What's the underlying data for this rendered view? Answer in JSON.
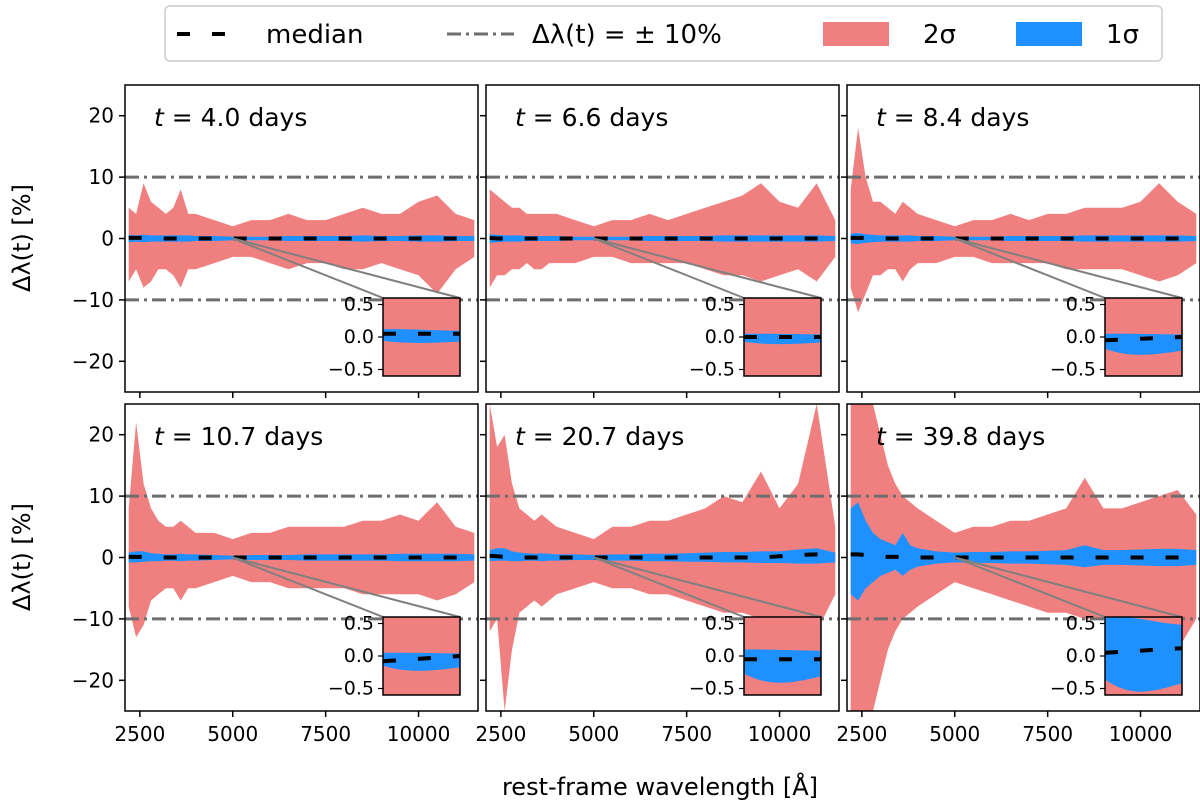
{
  "colors": {
    "two_sigma": "#F08080",
    "one_sigma": "#1E90FF",
    "median": "#000000",
    "threshold": "#6e6e6e",
    "connector": "#808080"
  },
  "legend": {
    "median": "median",
    "threshold": "Δλ(t) = ± 10%",
    "two_sigma": "2σ",
    "one_sigma": "1σ"
  },
  "chart_data": {
    "type": "area",
    "xlabel": "rest-frame wavelength [Å]",
    "ylabel": "Δλ(t) [%]",
    "xlim": [
      2100,
      11600
    ],
    "ylim": [
      -25,
      25
    ],
    "xticks": [
      2500,
      5000,
      7500,
      10000
    ],
    "xtick_labels": [
      "2500",
      "5000",
      "7500",
      "10000"
    ],
    "yticks": [
      -20,
      -10,
      0,
      10,
      20
    ],
    "ytick_labels": [
      "−20",
      "−10",
      "0",
      "10",
      "20"
    ],
    "threshold_values": [
      -10,
      10
    ],
    "inset": {
      "ylim": [
        -0.6,
        0.6
      ],
      "yticks": [
        -0.5,
        0.0,
        0.5
      ],
      "ytick_labels": [
        "−0.5",
        "0.0",
        "0.5"
      ],
      "zoom_x": 5000,
      "zoom_y": 0
    },
    "x": [
      2200,
      2400,
      2600,
      2800,
      3000,
      3200,
      3400,
      3600,
      3800,
      4000,
      4500,
      5000,
      5500,
      6000,
      6500,
      7000,
      7500,
      8000,
      8500,
      9000,
      9500,
      10000,
      10500,
      11000,
      11500
    ],
    "panels": [
      {
        "label_prefix": "t = ",
        "label_value": "4.0 days",
        "two_sigma_upper": [
          5,
          4,
          9,
          6,
          5,
          4,
          5,
          8,
          4,
          4,
          3,
          2,
          3,
          3,
          4,
          3,
          3,
          4,
          5,
          4,
          4,
          6,
          7,
          4,
          3
        ],
        "two_sigma_lower": [
          -7,
          -5,
          -8,
          -7,
          -5,
          -5,
          -6,
          -8,
          -5,
          -5,
          -4,
          -3,
          -3,
          -4,
          -5,
          -4,
          -4,
          -5,
          -5,
          -4,
          -5,
          -6,
          -9,
          -5,
          -3
        ],
        "one_sigma_upper": [
          0.6,
          0.5,
          0.6,
          0.5,
          0.5,
          0.5,
          0.5,
          0.5,
          0.5,
          0.4,
          0.4,
          0.3,
          0.3,
          0.3,
          0.4,
          0.4,
          0.4,
          0.4,
          0.5,
          0.4,
          0.4,
          0.5,
          0.5,
          0.4,
          0.4
        ],
        "one_sigma_lower": [
          -0.6,
          -0.5,
          -0.6,
          -0.5,
          -0.5,
          -0.5,
          -0.5,
          -0.5,
          -0.5,
          -0.4,
          -0.4,
          -0.3,
          -0.3,
          -0.3,
          -0.4,
          -0.4,
          -0.4,
          -0.4,
          -0.5,
          -0.4,
          -0.4,
          -0.5,
          -0.5,
          -0.4,
          -0.4
        ],
        "median": [
          0.1,
          0.1,
          0.1,
          0.1,
          0.1,
          0,
          0,
          0,
          0,
          0,
          0,
          0,
          0,
          0,
          0,
          0,
          0,
          0,
          0,
          0,
          0,
          0,
          0,
          0,
          0
        ],
        "inset_one_sigma": [
          0.12,
          -0.1
        ],
        "inset_median": [
          0.05,
          0.05
        ]
      },
      {
        "label_prefix": "t = ",
        "label_value": "6.6 days",
        "two_sigma_upper": [
          8,
          7,
          6,
          5,
          5,
          4,
          4,
          4,
          4,
          4,
          3,
          2,
          3,
          3,
          4,
          3,
          4,
          5,
          6,
          7,
          9,
          6,
          5,
          9,
          3
        ],
        "two_sigma_lower": [
          -8,
          -6,
          -6,
          -5,
          -5,
          -4,
          -5,
          -5,
          -4,
          -4,
          -4,
          -3,
          -3,
          -4,
          -4,
          -4,
          -4,
          -5,
          -6,
          -6,
          -7,
          -6,
          -5,
          -7,
          -3
        ],
        "one_sigma_upper": [
          0.7,
          0.6,
          0.5,
          0.5,
          0.5,
          0.4,
          0.4,
          0.4,
          0.4,
          0.4,
          0.3,
          0.3,
          0.3,
          0.3,
          0.4,
          0.4,
          0.4,
          0.4,
          0.5,
          0.5,
          0.5,
          0.5,
          0.5,
          0.5,
          0.4
        ],
        "one_sigma_lower": [
          -0.7,
          -0.6,
          -0.5,
          -0.5,
          -0.5,
          -0.4,
          -0.4,
          -0.4,
          -0.4,
          -0.4,
          -0.3,
          -0.3,
          -0.3,
          -0.3,
          -0.4,
          -0.4,
          -0.4,
          -0.4,
          -0.5,
          -0.5,
          -0.5,
          -0.5,
          -0.5,
          -0.5,
          -0.4
        ],
        "median": [
          0.1,
          0,
          0,
          0,
          0,
          0,
          0,
          0,
          0,
          0,
          0,
          0,
          0,
          0,
          0,
          0,
          0,
          0,
          0,
          0,
          0,
          0,
          0,
          0,
          0
        ],
        "inset_one_sigma": [
          0.05,
          -0.12
        ],
        "inset_median": [
          0.0,
          0.0
        ]
      },
      {
        "label_prefix": "t = ",
        "label_value": "8.4 days",
        "two_sigma_upper": [
          8,
          18,
          10,
          6,
          6,
          5,
          4,
          6,
          5,
          4,
          3,
          2,
          3,
          3,
          4,
          3,
          4,
          4,
          5,
          5,
          5,
          6,
          9,
          6,
          4
        ],
        "two_sigma_lower": [
          -8,
          -12,
          -9,
          -6,
          -6,
          -5,
          -5,
          -7,
          -5,
          -4,
          -4,
          -3,
          -3,
          -4,
          -4,
          -4,
          -4,
          -5,
          -5,
          -5,
          -5,
          -6,
          -7,
          -6,
          -4
        ],
        "one_sigma_upper": [
          0.8,
          0.9,
          0.7,
          0.6,
          0.5,
          0.5,
          0.5,
          0.5,
          0.5,
          0.4,
          0.4,
          0.3,
          0.3,
          0.3,
          0.4,
          0.4,
          0.4,
          0.4,
          0.5,
          0.5,
          0.5,
          0.5,
          0.5,
          0.5,
          0.4
        ],
        "one_sigma_lower": [
          -0.8,
          -0.9,
          -0.7,
          -0.6,
          -0.5,
          -0.5,
          -0.5,
          -0.5,
          -0.5,
          -0.4,
          -0.4,
          -0.3,
          -0.3,
          -0.3,
          -0.4,
          -0.4,
          -0.4,
          -0.4,
          -0.5,
          -0.5,
          -0.5,
          -0.5,
          -0.5,
          -0.5,
          -0.4
        ],
        "median": [
          0.1,
          0.1,
          0.1,
          0,
          0,
          0,
          0,
          0,
          0,
          0,
          0,
          0,
          0,
          0,
          0,
          0,
          0,
          0,
          0,
          0,
          0,
          0,
          0,
          0,
          0
        ],
        "inset_one_sigma": [
          0.05,
          -0.3
        ],
        "inset_median": [
          -0.05,
          0.0
        ]
      },
      {
        "label_prefix": "t = ",
        "label_value": "10.7 days",
        "two_sigma_upper": [
          8,
          22,
          12,
          8,
          6,
          5,
          5,
          6,
          5,
          4,
          4,
          3,
          4,
          4,
          5,
          5,
          5,
          5,
          6,
          6,
          7,
          6,
          9,
          5,
          4
        ],
        "two_sigma_lower": [
          -8,
          -13,
          -11,
          -7,
          -6,
          -5,
          -5,
          -7,
          -5,
          -5,
          -4,
          -3,
          -4,
          -4,
          -5,
          -5,
          -5,
          -5,
          -6,
          -6,
          -6,
          -6,
          -7,
          -6,
          -4
        ],
        "one_sigma_upper": [
          0.8,
          1.0,
          1.0,
          0.7,
          0.6,
          0.5,
          0.5,
          0.6,
          0.5,
          0.5,
          0.4,
          0.3,
          0.4,
          0.4,
          0.4,
          0.5,
          0.5,
          0.5,
          0.5,
          0.5,
          0.6,
          0.6,
          0.6,
          0.6,
          0.5
        ],
        "one_sigma_lower": [
          -0.8,
          -0.8,
          -0.7,
          -0.6,
          -0.6,
          -0.5,
          -0.5,
          -0.6,
          -0.5,
          -0.5,
          -0.4,
          -0.3,
          -0.4,
          -0.4,
          -0.4,
          -0.5,
          -0.5,
          -0.5,
          -0.5,
          -0.5,
          -0.6,
          -0.6,
          -0.6,
          -0.6,
          -0.5
        ],
        "median": [
          0.1,
          0.1,
          0.1,
          0,
          0,
          0,
          0,
          0,
          0,
          0,
          0,
          0,
          0,
          0,
          0,
          0,
          0,
          0,
          0,
          0,
          0,
          0,
          0,
          0,
          0
        ],
        "inset_one_sigma": [
          0.05,
          -0.25
        ],
        "inset_median": [
          -0.08,
          0.0
        ]
      },
      {
        "label_prefix": "t = ",
        "label_value": "20.7 days",
        "two_sigma_upper": [
          25,
          18,
          20,
          12,
          8,
          7,
          6,
          7,
          6,
          5,
          4,
          3,
          5,
          5,
          6,
          6,
          7,
          8,
          10,
          9,
          14,
          8,
          12,
          25,
          5
        ],
        "two_sigma_lower": [
          -12,
          -10,
          -25,
          -15,
          -9,
          -8,
          -7,
          -8,
          -7,
          -6,
          -5,
          -4,
          -5,
          -5,
          -6,
          -6,
          -7,
          -8,
          -9,
          -9,
          -10,
          -10,
          -10,
          -12,
          -6
        ],
        "one_sigma_upper": [
          1.2,
          1.5,
          1.5,
          1.0,
          0.8,
          0.7,
          0.6,
          0.7,
          0.6,
          0.5,
          0.5,
          0.4,
          0.5,
          0.5,
          0.6,
          0.6,
          0.7,
          0.8,
          0.9,
          0.9,
          1.0,
          1.0,
          1.3,
          1.5,
          0.8
        ],
        "one_sigma_lower": [
          -0.6,
          -0.5,
          -0.5,
          -0.6,
          -0.6,
          -0.5,
          -0.5,
          -0.6,
          -0.5,
          -0.5,
          -0.4,
          -0.4,
          -0.5,
          -0.5,
          -0.6,
          -0.6,
          -0.7,
          -0.7,
          -0.8,
          -0.8,
          -0.9,
          -0.9,
          -1.0,
          -1.0,
          -0.8
        ],
        "median": [
          0.3,
          0.2,
          0.1,
          0.1,
          0,
          0,
          0,
          0,
          0,
          0,
          0,
          0,
          0,
          0,
          0,
          0,
          0,
          0,
          0,
          0,
          0,
          0.2,
          0.4,
          0.5,
          0.3
        ],
        "inset_one_sigma": [
          0.1,
          -0.45
        ],
        "inset_median": [
          -0.05,
          -0.05
        ]
      },
      {
        "label_prefix": "t = ",
        "label_value": "39.8 days",
        "two_sigma_upper": [
          25,
          25,
          25,
          25,
          20,
          15,
          12,
          10,
          9,
          8,
          6,
          4,
          5,
          5,
          6,
          6,
          7,
          8,
          13,
          8,
          8,
          9,
          10,
          11,
          7
        ],
        "two_sigma_lower": [
          -25,
          -25,
          -25,
          -25,
          -20,
          -15,
          -12,
          -10,
          -9,
          -8,
          -6,
          -4,
          -5,
          -6,
          -7,
          -8,
          -9,
          -9,
          -10,
          -10,
          -12,
          -12,
          -14,
          -15,
          -10
        ],
        "one_sigma_upper": [
          8,
          9,
          6,
          4,
          3,
          2.5,
          2,
          4,
          2,
          1.5,
          1,
          0.8,
          0.9,
          0.9,
          1,
          1,
          1.1,
          1.2,
          2,
          1.2,
          1.2,
          1.3,
          1.4,
          1.4,
          1.2
        ],
        "one_sigma_lower": [
          -6,
          -7,
          -5,
          -4,
          -3,
          -2.5,
          -2,
          -3,
          -2,
          -1.5,
          -1,
          -0.8,
          -0.9,
          -0.9,
          -1,
          -1,
          -1.1,
          -1.2,
          -1.6,
          -1.2,
          -1.2,
          -1.3,
          -1.4,
          -1.4,
          -1.2
        ],
        "median": [
          0.5,
          0.5,
          0.4,
          0.3,
          0.2,
          0.1,
          0.1,
          0.1,
          0.1,
          0,
          0,
          0,
          0,
          0,
          0,
          0,
          0,
          0,
          0,
          0,
          0,
          0,
          0,
          0,
          0
        ],
        "inset_one_sigma": [
          0.6,
          -0.6
        ],
        "inset_median": [
          0.05,
          0.12
        ]
      }
    ]
  }
}
